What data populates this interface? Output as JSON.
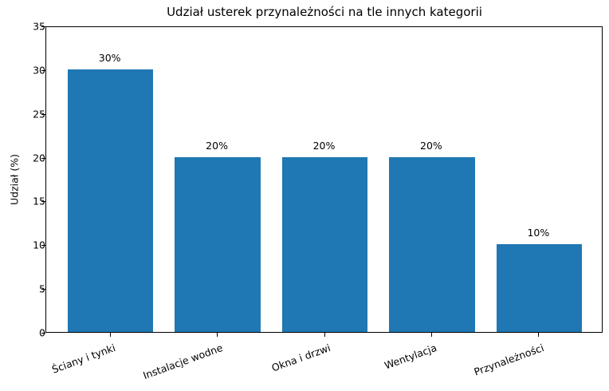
{
  "chart_data": {
    "type": "bar",
    "title": "Udział usterek przynależności na tle innych kategorii",
    "xlabel": "",
    "ylabel": "Udział (%)",
    "categories": [
      "Ściany i tynki",
      "Instalacje wodne",
      "Okna i drzwi",
      "Wentylacja",
      "Przynależności"
    ],
    "values": [
      30,
      20,
      20,
      20,
      10
    ],
    "value_labels": [
      "30%",
      "20%",
      "20%",
      "20%",
      "10%"
    ],
    "ylim": [
      0,
      35
    ],
    "yticks": [
      0,
      5,
      10,
      15,
      20,
      25,
      30,
      35
    ],
    "xtick_rotation": 20,
    "grid": false,
    "bar_color": "#1f77b4"
  }
}
